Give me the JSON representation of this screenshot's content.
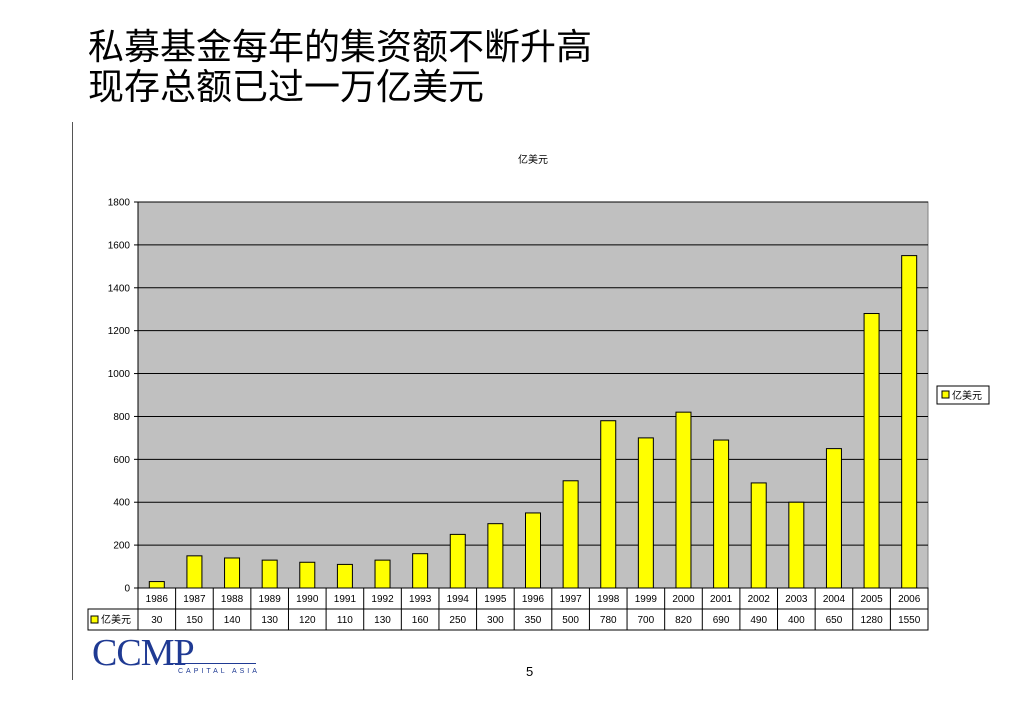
{
  "slide": {
    "title_line1": "私募基金每年的集资额不断升高",
    "title_line2": "现存总额已过一万亿美元",
    "page_number": "5"
  },
  "logo": {
    "main": "CCMP",
    "sub": "CAPITAL ASIA"
  },
  "chart_data": {
    "type": "bar",
    "title": "亿美元",
    "categories": [
      "1986",
      "1987",
      "1988",
      "1989",
      "1990",
      "1991",
      "1992",
      "1993",
      "1994",
      "1995",
      "1996",
      "1997",
      "1998",
      "1999",
      "2000",
      "2001",
      "2002",
      "2003",
      "2004",
      "2005",
      "2006"
    ],
    "series": [
      {
        "name": "亿美元",
        "values": [
          30,
          150,
          140,
          130,
          120,
          110,
          130,
          160,
          250,
          300,
          350,
          500,
          780,
          700,
          820,
          690,
          490,
          400,
          650,
          1280,
          1550
        ],
        "color": "#ffff00"
      }
    ],
    "ylim": [
      0,
      1800
    ],
    "yticks": [
      0,
      200,
      400,
      600,
      800,
      1000,
      1200,
      1400,
      1600,
      1800
    ],
    "grid": true,
    "legend_position": "right",
    "plot_background": "#c0c0c0",
    "data_table": true
  }
}
